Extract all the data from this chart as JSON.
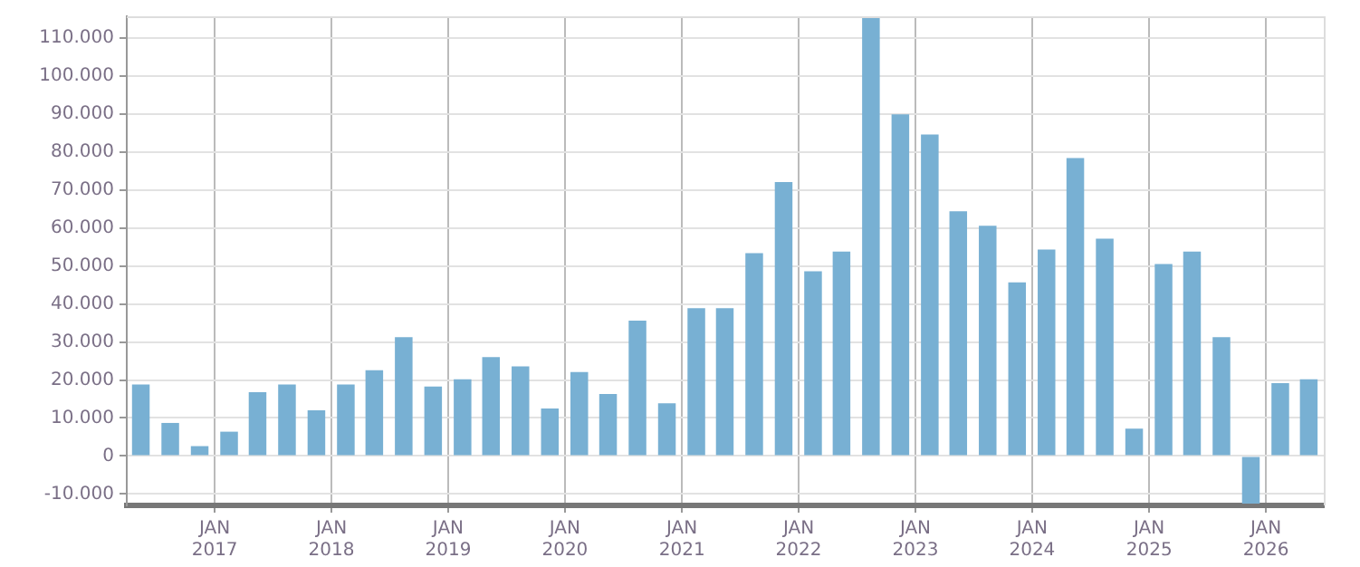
{
  "chart_data": {
    "type": "bar",
    "x": [
      "2016-05-15",
      "2016-08-15",
      "2016-11-15",
      "2017-02-15",
      "2017-05-15",
      "2017-08-15",
      "2017-11-15",
      "2018-02-15",
      "2018-05-15",
      "2018-08-15",
      "2018-11-15",
      "2019-02-15",
      "2019-05-15",
      "2019-08-15",
      "2019-11-15",
      "2020-02-15",
      "2020-05-15",
      "2020-08-15",
      "2020-11-15",
      "2021-02-15",
      "2021-05-15",
      "2021-08-15",
      "2021-11-15",
      "2022-02-15",
      "2022-05-15",
      "2022-08-15",
      "2022-11-15",
      "2023-02-15",
      "2023-05-15",
      "2023-08-15",
      "2023-11-15",
      "2024-02-15",
      "2024-05-15",
      "2024-08-15",
      "2024-11-15",
      "2025-02-15",
      "2025-05-15",
      "2025-08-15",
      "2025-11-15",
      "2026-02-15",
      "2026-05-15"
    ],
    "values": [
      18800,
      8700,
      2600,
      6400,
      16800,
      18800,
      12000,
      18800,
      22600,
      31300,
      18300,
      20200,
      26000,
      23600,
      12500,
      22100,
      16300,
      35600,
      13900,
      38900,
      38900,
      53400,
      72100,
      48600,
      53800,
      115500,
      89900,
      84600,
      64400,
      60600,
      45700,
      54300,
      78400,
      57200,
      7200,
      50500,
      53800,
      31300,
      -12500,
      19200,
      20200
    ],
    "color": "#78b0d3",
    "xlim": [
      "2016-04-01",
      "2026-07-01"
    ],
    "xticks": [
      {
        "value": "2017-01-01",
        "label": "JAN\n2017"
      },
      {
        "value": "2018-01-01",
        "label": "JAN\n2018"
      },
      {
        "value": "2019-01-01",
        "label": "JAN\n2019"
      },
      {
        "value": "2020-01-01",
        "label": "JAN\n2020"
      },
      {
        "value": "2021-01-01",
        "label": "JAN\n2021"
      },
      {
        "value": "2022-01-01",
        "label": "JAN\n2022"
      },
      {
        "value": "2023-01-01",
        "label": "JAN\n2023"
      },
      {
        "value": "2024-01-01",
        "label": "JAN\n2024"
      },
      {
        "value": "2025-01-01",
        "label": "JAN\n2025"
      },
      {
        "value": "2026-01-01",
        "label": "JAN\n2026"
      }
    ],
    "ylim": [
      -13000,
      115700
    ],
    "yticks": [
      {
        "value": -10000,
        "label": "-10.000"
      },
      0,
      {
        "value": 10000,
        "label": "10.000"
      },
      {
        "value": 20000,
        "label": "20.000"
      },
      {
        "value": 30000,
        "label": "30.000"
      },
      {
        "value": 40000,
        "label": "40.000"
      },
      {
        "value": 50000,
        "label": "50.000"
      },
      {
        "value": 60000,
        "label": "60.000"
      },
      {
        "value": 70000,
        "label": "70.000"
      },
      {
        "value": 80000,
        "label": "80.000"
      },
      {
        "value": 90000,
        "label": "90.000"
      },
      {
        "value": 100000,
        "label": "100.000"
      },
      {
        "value": 110000,
        "label": "110.000"
      }
    ],
    "grid": true,
    "legend": false
  }
}
